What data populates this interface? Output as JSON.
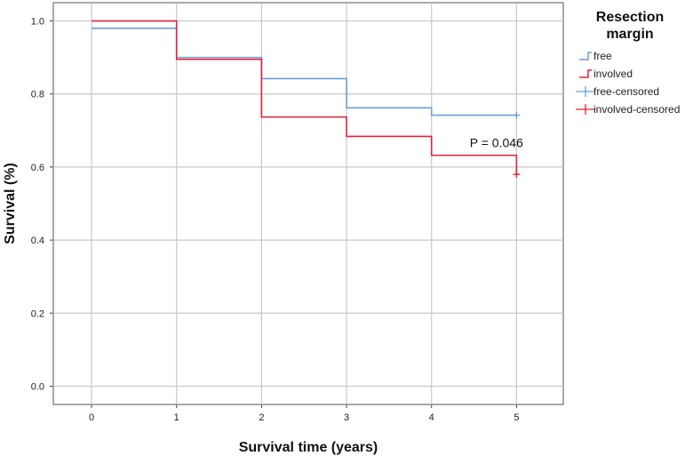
{
  "chart_data": {
    "type": "line",
    "subtype": "kaplan-meier-step",
    "xlabel": "Survival time (years)",
    "ylabel": "Survival (%)",
    "xlim": [
      -0.45,
      5.55
    ],
    "ylim": [
      -0.05,
      1.05
    ],
    "x_ticks": [
      "0",
      "1",
      "2",
      "3",
      "4",
      "5"
    ],
    "y_ticks": [
      "0.0",
      "0.2",
      "0.4",
      "0.6",
      "0.8",
      "1.0"
    ],
    "grid": true,
    "legend": {
      "title_lines": [
        "Resection",
        "margin"
      ],
      "placement": "right",
      "entries": [
        "free",
        "involved",
        "free-censored",
        "involved-censored"
      ]
    },
    "annotation": {
      "text": "P = 0.046",
      "x": 4.45,
      "y": 0.655
    },
    "series": [
      {
        "name": "free",
        "color": "#6a9fdc",
        "steps": [
          [
            0,
            0.98
          ],
          [
            1,
            0.9
          ],
          [
            2,
            0.842
          ],
          [
            3,
            0.762
          ],
          [
            4,
            0.742
          ],
          [
            5,
            0.742
          ]
        ],
        "censored": [
          [
            5,
            0.742
          ]
        ]
      },
      {
        "name": "involved",
        "color": "#e8203a",
        "steps": [
          [
            0,
            1.0
          ],
          [
            1,
            0.895
          ],
          [
            2,
            0.737
          ],
          [
            3,
            0.684
          ],
          [
            4,
            0.632
          ],
          [
            5,
            0.632
          ]
        ],
        "censored": [
          [
            5,
            0.58
          ]
        ],
        "end_drop": 0.58
      }
    ]
  }
}
